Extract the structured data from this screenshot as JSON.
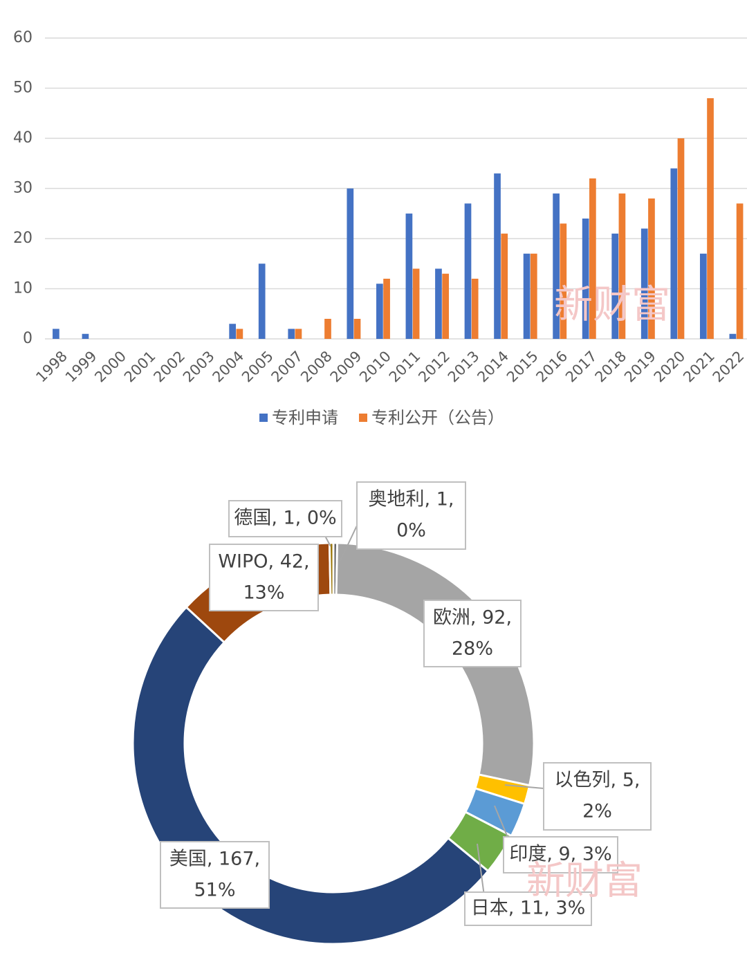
{
  "chart_data": [
    {
      "type": "bar",
      "categories": [
        "1998",
        "1999",
        "2000",
        "2001",
        "2002",
        "2003",
        "2004",
        "2005",
        "2007",
        "2008",
        "2009",
        "2010",
        "2011",
        "2012",
        "2013",
        "2014",
        "2015",
        "2016",
        "2017",
        "2018",
        "2019",
        "2020",
        "2021",
        "2022"
      ],
      "series": [
        {
          "name": "专利申请",
          "color": "#4472c4",
          "values": [
            2,
            1,
            0,
            0,
            0,
            0,
            3,
            15,
            2,
            0,
            30,
            11,
            25,
            14,
            27,
            33,
            17,
            29,
            24,
            21,
            22,
            34,
            17,
            1
          ]
        },
        {
          "name": "专利公开（公告）",
          "color": "#ed7d31",
          "values": [
            0,
            0,
            0,
            0,
            0,
            0,
            2,
            0,
            2,
            4,
            4,
            12,
            14,
            13,
            12,
            21,
            17,
            23,
            32,
            29,
            28,
            40,
            48,
            27
          ]
        }
      ],
      "ylim": [
        0,
        60
      ],
      "yticks": [
        0,
        10,
        20,
        30,
        40,
        50,
        60
      ],
      "grid": true,
      "legend": "bottom"
    },
    {
      "type": "donut",
      "categories": [
        "奥地利",
        "欧洲",
        "以色列",
        "印度",
        "日本",
        "美国",
        "WIPO",
        "德国"
      ],
      "values": [
        1,
        92,
        5,
        9,
        11,
        167,
        42,
        1
      ],
      "colors": [
        "#636363",
        "#a5a5a5",
        "#ffc000",
        "#5b9bd5",
        "#70ad47",
        "#264478",
        "#9e480e",
        "#997300"
      ],
      "value_labels": [
        [
          "奥地利, 1,",
          "0%"
        ],
        [
          "欧洲, 92,",
          "28%"
        ],
        [
          "以色列, 5,",
          "2%"
        ],
        [
          "印度, 9, 3%"
        ],
        [
          "日本, 11, 3%"
        ],
        [
          "美国, 167,",
          "51%"
        ],
        [
          "WIPO, 42,",
          "13%"
        ],
        [
          "德国, 1, 0%"
        ]
      ]
    }
  ],
  "watermark": "新财富"
}
